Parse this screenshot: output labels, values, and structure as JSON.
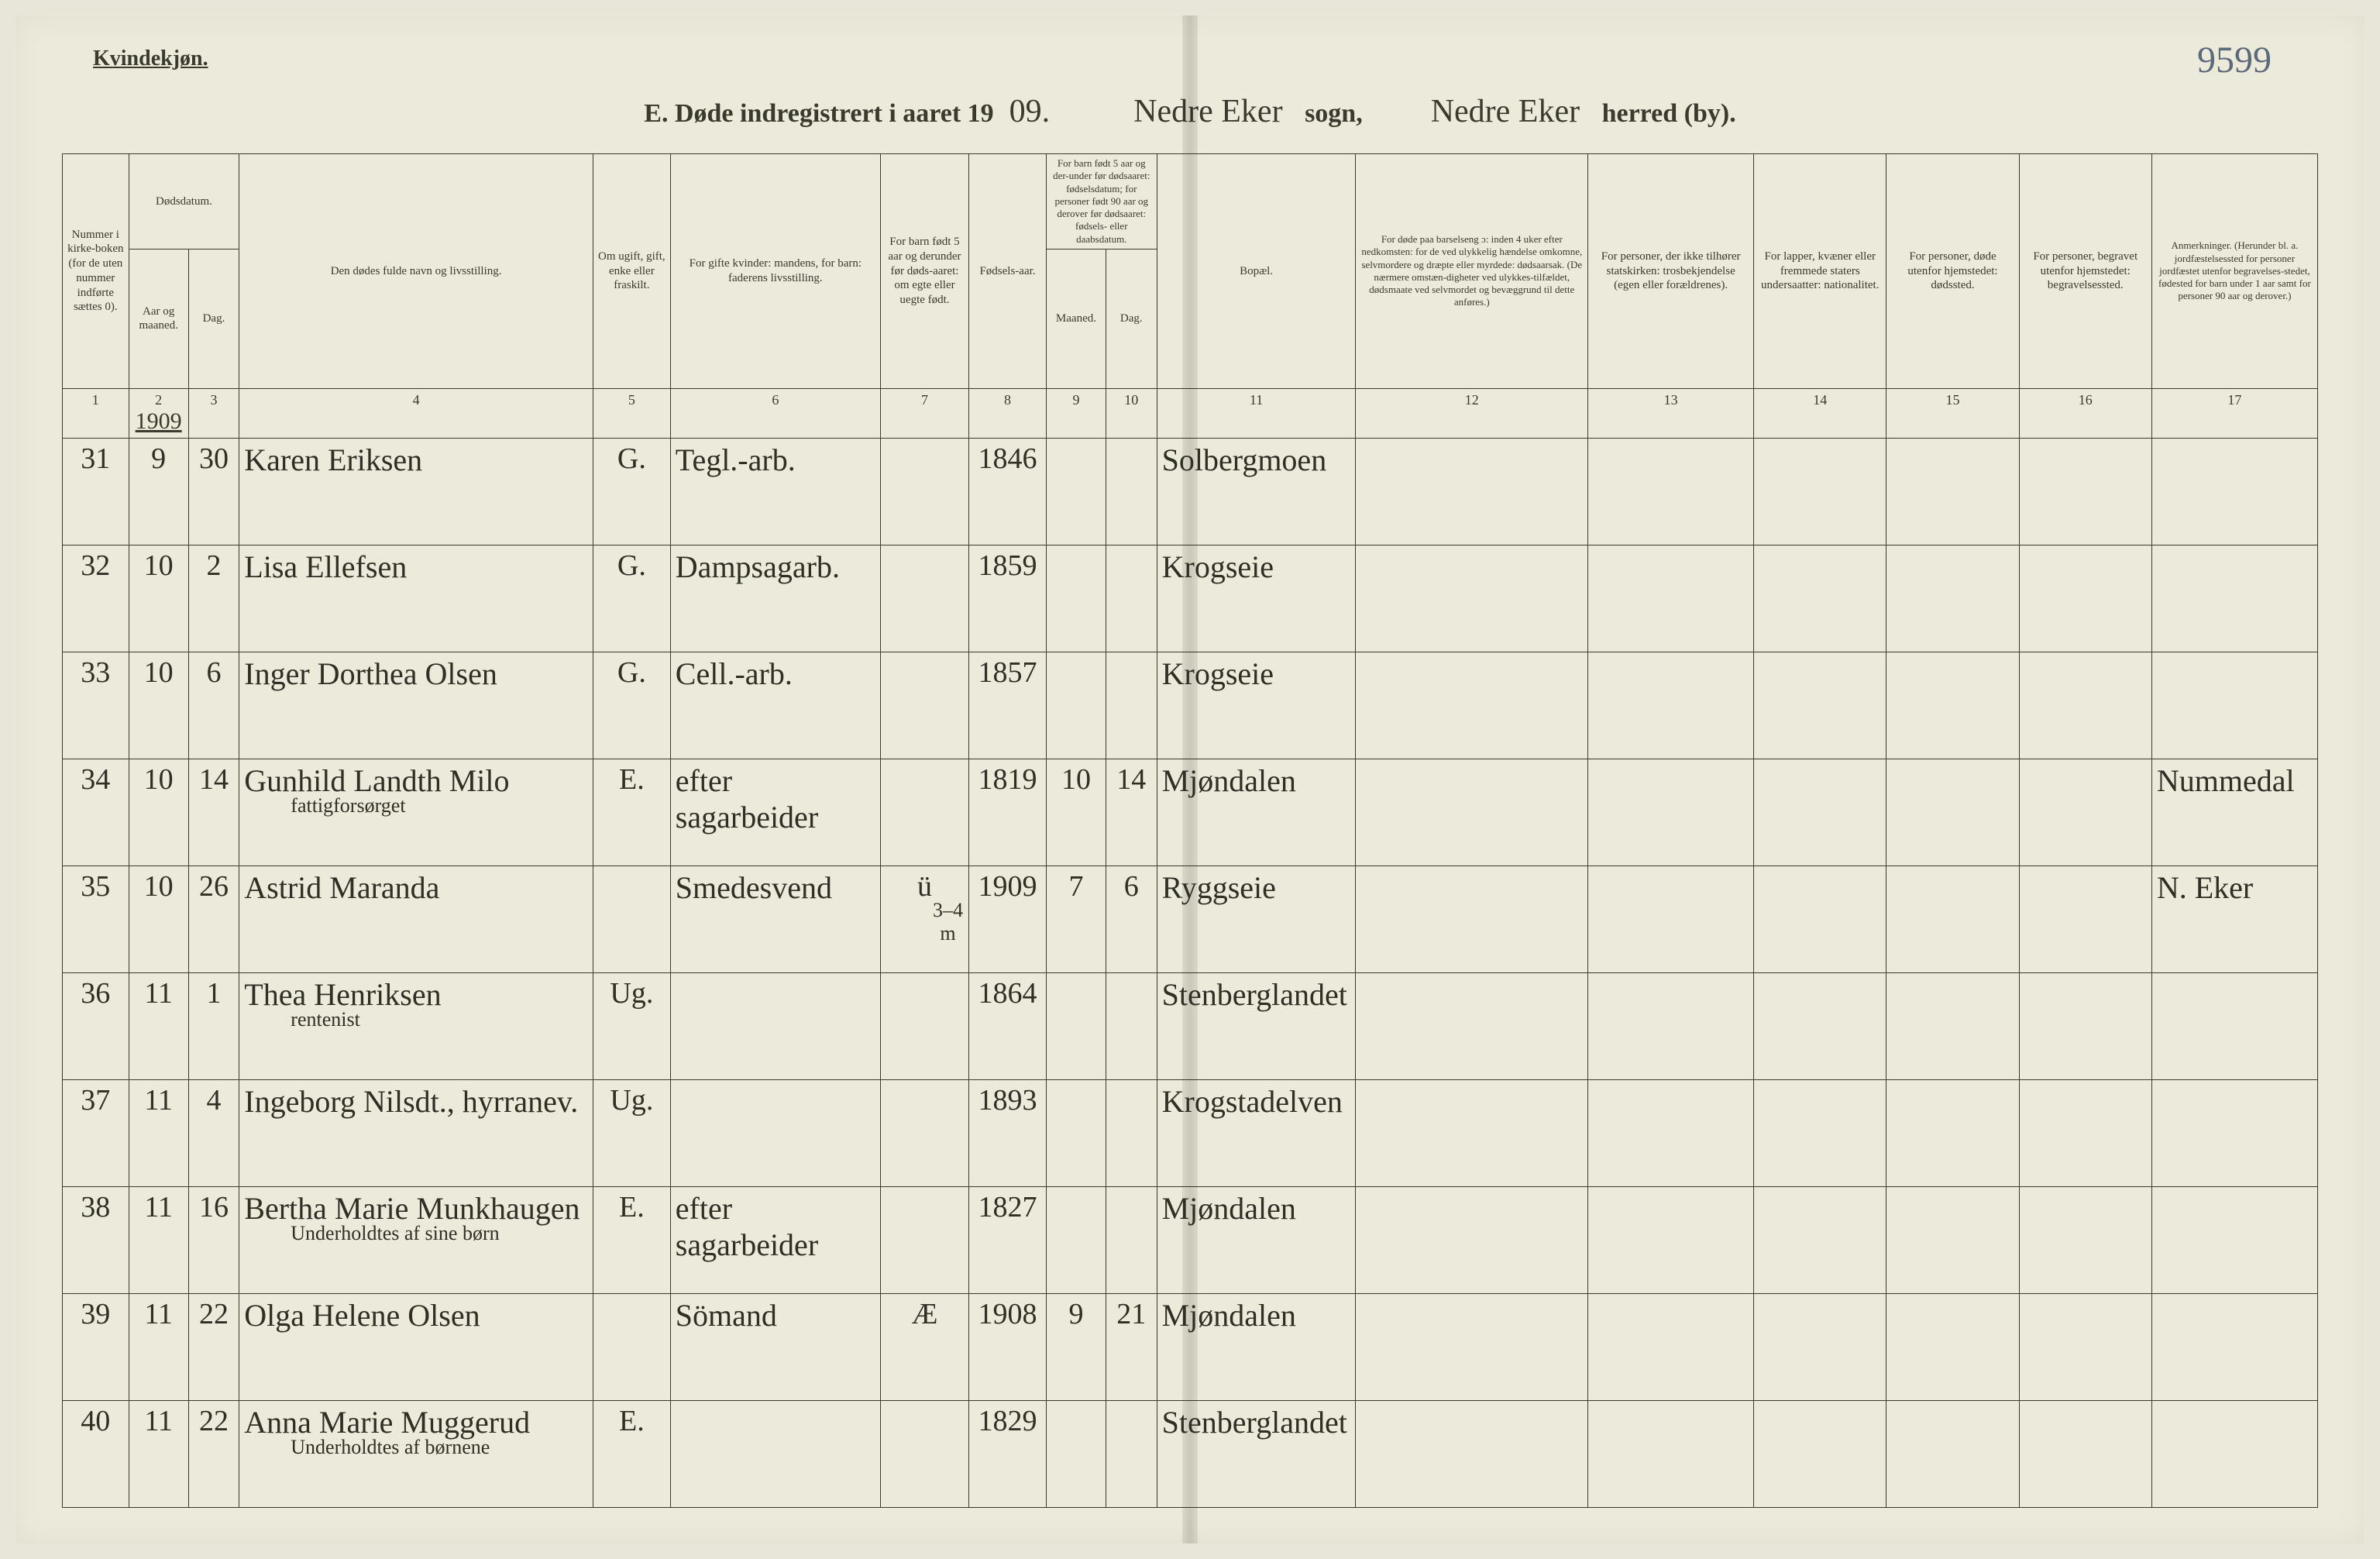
{
  "page": {
    "gender_heading": "Kvindekjøn.",
    "folio_number": "9599",
    "title_prefix": "E.  Døde indregistrert i aaret 19",
    "title_year_suffix": "09.",
    "sogn_cursive": "Nedre Eker",
    "sogn_label": "sogn,",
    "herred_cursive": "Nedre Eker",
    "herred_label": "herred (by).",
    "year_under_col2": "1909"
  },
  "columns": {
    "c1": "Nummer i kirke-boken (for de uten nummer indførte sættes 0).",
    "c2a": "Dødsdatum.",
    "c2_aar": "Aar og maaned.",
    "c2_dag": "Dag.",
    "c4": "Den dødes fulde navn og livsstilling.",
    "c5": "Om ugift, gift, enke eller fraskilt.",
    "c6": "For gifte kvinder: mandens, for barn: faderens livsstilling.",
    "c7": "For barn født 5 aar og derunder før døds-aaret: om egte eller uegte født.",
    "c8": "Fødsels-aar.",
    "c9_10": "For barn født 5 aar og der-under før dødsaaret: fødselsdatum; for personer født 90 aar og derover før dødsaaret: fødsels- eller daabsdatum.",
    "c9": "Maaned.",
    "c10": "Dag.",
    "c11": "Bopæl.",
    "c12": "For døde paa barselseng ɔ: inden 4 uker efter nedkomsten: for de ved ulykkelig hændelse omkomne, selvmordere og dræpte eller myrdede: dødsaarsak. (De nærmere omstæn-digheter ved ulykkes-tilfældet, dødsmaate ved selvmordet og bevæggrund til dette anføres.)",
    "c13": "For personer, der ikke tilhører statskirken: trosbekjendelse (egen eller forældrenes).",
    "c14": "For lapper, kvæner eller fremmede staters undersaatter: nationalitet.",
    "c15": "For personer, døde utenfor hjemstedet: dødssted.",
    "c16": "For personer, begravet utenfor hjemstedet: begravelsessted.",
    "c17": "Anmerkninger. (Herunder bl. a. jordfæstelsessted for personer jordfæstet utenfor begravelses-stedet, fødested for barn under 1 aar samt for personer 90 aar og derover.)"
  },
  "colnums": [
    "1",
    "2",
    "3",
    "4",
    "5",
    "6",
    "7",
    "8",
    "9",
    "10",
    "11",
    "12",
    "13",
    "14",
    "15",
    "16",
    "17"
  ],
  "rows": [
    {
      "n": "31",
      "mm": "9",
      "dd": "30",
      "name": "Karen Eriksen",
      "sub": "",
      "civ": "G.",
      "occ": "Tegl.-arb.",
      "leg": "",
      "yr": "1846",
      "bm": "",
      "bd": "",
      "res": "Solbergmoen",
      "c12": "",
      "c13": "",
      "c14": "",
      "c15": "",
      "c16": "",
      "c17": ""
    },
    {
      "n": "32",
      "mm": "10",
      "dd": "2",
      "name": "Lisa Ellefsen",
      "sub": "",
      "civ": "G.",
      "occ": "Dampsagarb.",
      "leg": "",
      "yr": "1859",
      "bm": "",
      "bd": "",
      "res": "Krogseie",
      "c12": "",
      "c13": "",
      "c14": "",
      "c15": "",
      "c16": "",
      "c17": ""
    },
    {
      "n": "33",
      "mm": "10",
      "dd": "6",
      "name": "Inger Dorthea Olsen",
      "sub": "",
      "civ": "G.",
      "occ": "Cell.-arb.",
      "leg": "",
      "yr": "1857",
      "bm": "",
      "bd": "",
      "res": "Krogseie",
      "c12": "",
      "c13": "",
      "c14": "",
      "c15": "",
      "c16": "",
      "c17": ""
    },
    {
      "n": "34",
      "mm": "10",
      "dd": "14",
      "name": "Gunhild Landth Milo",
      "sub": "fattigforsørget",
      "civ": "E.",
      "occ": "efter sagarbeider",
      "leg": "",
      "yr": "1819",
      "bm": "10",
      "bd": "14",
      "res": "Mjøndalen",
      "c12": "",
      "c13": "",
      "c14": "",
      "c15": "",
      "c16": "",
      "c17": "Nummedal"
    },
    {
      "n": "35",
      "mm": "10",
      "dd": "26",
      "name": "Astrid Maranda",
      "sub": "",
      "civ": "",
      "occ": "Smedesvend",
      "leg": "ü",
      "yr": "1909",
      "bm": "7",
      "bd": "6",
      "res": "Ryggseie",
      "c12": "",
      "c13": "",
      "c14": "",
      "c15": "",
      "c16": "",
      "c17": "N. Eker",
      "legnote": "3–4 m"
    },
    {
      "n": "36",
      "mm": "11",
      "dd": "1",
      "name": "Thea Henriksen",
      "sub": "rentenist",
      "civ": "Ug.",
      "occ": "",
      "leg": "",
      "yr": "1864",
      "bm": "",
      "bd": "",
      "res": "Stenberglandet",
      "c12": "",
      "c13": "",
      "c14": "",
      "c15": "",
      "c16": "",
      "c17": ""
    },
    {
      "n": "37",
      "mm": "11",
      "dd": "4",
      "name": "Ingeborg Nilsdt., hyrranev.",
      "sub": "",
      "civ": "Ug.",
      "occ": "",
      "leg": "",
      "yr": "1893",
      "bm": "",
      "bd": "",
      "res": "Krogstadelven",
      "c12": "",
      "c13": "",
      "c14": "",
      "c15": "",
      "c16": "",
      "c17": ""
    },
    {
      "n": "38",
      "mm": "11",
      "dd": "16",
      "name": "Bertha Marie Munkhaugen",
      "sub": "Underholdtes af sine børn",
      "civ": "E.",
      "occ": "efter sagarbeider",
      "leg": "",
      "yr": "1827",
      "bm": "",
      "bd": "",
      "res": "Mjøndalen",
      "c12": "",
      "c13": "",
      "c14": "",
      "c15": "",
      "c16": "",
      "c17": ""
    },
    {
      "n": "39",
      "mm": "11",
      "dd": "22",
      "name": "Olga Helene Olsen",
      "sub": "",
      "civ": "",
      "occ": "Sömand",
      "leg": "Æ",
      "yr": "1908",
      "bm": "9",
      "bd": "21",
      "res": "Mjøndalen",
      "c12": "",
      "c13": "",
      "c14": "",
      "c15": "",
      "c16": "",
      "c17": ""
    },
    {
      "n": "40",
      "mm": "11",
      "dd": "22",
      "name": "Anna Marie Muggerud",
      "sub": "Underholdtes af børnene",
      "civ": "E.",
      "occ": "",
      "leg": "",
      "yr": "1829",
      "bm": "",
      "bd": "",
      "res": "Stenberglandet",
      "c12": "",
      "c13": "",
      "c14": "",
      "c15": "",
      "c16": "",
      "c17": ""
    }
  ],
  "colwidths_pct": [
    3.0,
    2.7,
    2.3,
    16.0,
    3.5,
    9.5,
    4.0,
    3.5,
    2.7,
    2.3,
    9.0,
    10.5,
    7.5,
    6.0,
    6.0,
    6.0,
    7.5
  ]
}
